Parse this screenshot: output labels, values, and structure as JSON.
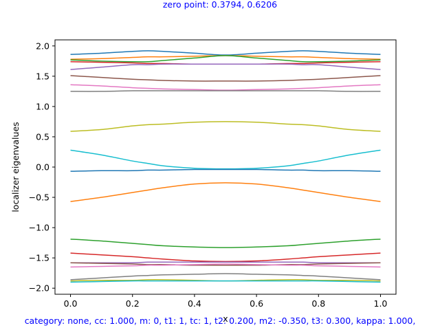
{
  "chart_data": {
    "type": "line",
    "title": "zero point: 0.3794, 0.6206",
    "footer": "category: none, cc: 1.000, m: 0, t1: 1, tc: 1, t2: 0.200, m2: -0.350, t3: 0.300, kappa: 1.000,",
    "xlabel": "x",
    "ylabel": "localizer eigenvalues",
    "xlim": [
      -0.05,
      1.05
    ],
    "ylim": [
      -2.1,
      2.1
    ],
    "xticks": [
      0.0,
      0.2,
      0.4,
      0.6,
      0.8,
      1.0
    ],
    "xtick_labels": [
      "0.0",
      "0.2",
      "0.4",
      "0.6",
      "0.8",
      "1.0"
    ],
    "yticks": [
      -2.0,
      -1.5,
      -1.0,
      -0.5,
      0.0,
      0.5,
      1.0,
      1.5,
      2.0
    ],
    "ytick_labels": [
      "−2.0",
      "−1.5",
      "−1.0",
      "−0.5",
      "0.0",
      "0.5",
      "1.0",
      "1.5",
      "2.0"
    ],
    "grid": false,
    "x": [
      0.0,
      0.1,
      0.2,
      0.25,
      0.3,
      0.4,
      0.5,
      0.6,
      0.7,
      0.75,
      0.8,
      0.9,
      1.0
    ],
    "series": [
      {
        "color": "#1f77b4",
        "values": [
          1.86,
          1.88,
          1.91,
          1.92,
          1.91,
          1.88,
          1.85,
          1.88,
          1.91,
          1.92,
          1.91,
          1.88,
          1.86
        ]
      },
      {
        "color": "#ff7f0e",
        "values": [
          1.78,
          1.79,
          1.81,
          1.82,
          1.82,
          1.83,
          1.84,
          1.83,
          1.82,
          1.82,
          1.81,
          1.79,
          1.78
        ]
      },
      {
        "color": "#2ca02c",
        "values": [
          1.77,
          1.75,
          1.74,
          1.74,
          1.76,
          1.8,
          1.84,
          1.8,
          1.76,
          1.74,
          1.74,
          1.75,
          1.77
        ]
      },
      {
        "color": "#d62728",
        "values": [
          1.74,
          1.73,
          1.72,
          1.71,
          1.71,
          1.7,
          1.7,
          1.7,
          1.71,
          1.71,
          1.72,
          1.73,
          1.74
        ]
      },
      {
        "color": "#9467bd",
        "values": [
          1.61,
          1.65,
          1.69,
          1.69,
          1.7,
          1.7,
          1.7,
          1.7,
          1.7,
          1.69,
          1.69,
          1.65,
          1.61
        ]
      },
      {
        "color": "#8c564b",
        "values": [
          1.51,
          1.48,
          1.45,
          1.44,
          1.43,
          1.42,
          1.42,
          1.42,
          1.43,
          1.44,
          1.45,
          1.48,
          1.51
        ]
      },
      {
        "color": "#e377c2",
        "values": [
          1.36,
          1.34,
          1.31,
          1.3,
          1.29,
          1.28,
          1.27,
          1.28,
          1.29,
          1.3,
          1.31,
          1.34,
          1.36
        ]
      },
      {
        "color": "#7f7f7f",
        "values": [
          1.25,
          1.25,
          1.26,
          1.26,
          1.26,
          1.26,
          1.26,
          1.26,
          1.26,
          1.26,
          1.26,
          1.25,
          1.25
        ]
      },
      {
        "color": "#bcbd22",
        "values": [
          0.59,
          0.62,
          0.68,
          0.7,
          0.71,
          0.74,
          0.75,
          0.74,
          0.71,
          0.7,
          0.68,
          0.62,
          0.59
        ]
      },
      {
        "color": "#17becf",
        "values": [
          0.28,
          0.2,
          0.1,
          0.06,
          0.02,
          -0.02,
          -0.03,
          -0.02,
          0.02,
          0.06,
          0.1,
          0.2,
          0.28
        ]
      },
      {
        "color": "#1f77b4",
        "values": [
          -0.07,
          -0.06,
          -0.06,
          -0.05,
          -0.05,
          -0.04,
          -0.04,
          -0.04,
          -0.05,
          -0.05,
          -0.06,
          -0.06,
          -0.07
        ]
      },
      {
        "color": "#ff7f0e",
        "values": [
          -0.57,
          -0.5,
          -0.42,
          -0.38,
          -0.34,
          -0.28,
          -0.26,
          -0.28,
          -0.34,
          -0.38,
          -0.42,
          -0.5,
          -0.57
        ]
      },
      {
        "color": "#2ca02c",
        "values": [
          -1.19,
          -1.22,
          -1.26,
          -1.28,
          -1.3,
          -1.32,
          -1.33,
          -1.32,
          -1.3,
          -1.28,
          -1.26,
          -1.22,
          -1.19
        ]
      },
      {
        "color": "#d62728",
        "values": [
          -1.42,
          -1.45,
          -1.48,
          -1.5,
          -1.52,
          -1.55,
          -1.56,
          -1.55,
          -1.52,
          -1.5,
          -1.48,
          -1.45,
          -1.42
        ]
      },
      {
        "color": "#9467bd",
        "values": [
          -1.58,
          -1.58,
          -1.58,
          -1.57,
          -1.57,
          -1.57,
          -1.57,
          -1.57,
          -1.57,
          -1.57,
          -1.58,
          -1.58,
          -1.58
        ]
      },
      {
        "color": "#8c564b",
        "values": [
          -1.58,
          -1.59,
          -1.6,
          -1.61,
          -1.61,
          -1.62,
          -1.62,
          -1.62,
          -1.61,
          -1.61,
          -1.6,
          -1.59,
          -1.58
        ]
      },
      {
        "color": "#e377c2",
        "values": [
          -1.65,
          -1.64,
          -1.63,
          -1.62,
          -1.62,
          -1.61,
          -1.6,
          -1.61,
          -1.62,
          -1.62,
          -1.63,
          -1.64,
          -1.65
        ]
      },
      {
        "color": "#7f7f7f",
        "values": [
          -1.86,
          -1.83,
          -1.8,
          -1.79,
          -1.78,
          -1.77,
          -1.76,
          -1.77,
          -1.78,
          -1.79,
          -1.8,
          -1.83,
          -1.86
        ]
      },
      {
        "color": "#bcbd22",
        "values": [
          -1.88,
          -1.87,
          -1.87,
          -1.86,
          -1.86,
          -1.87,
          -1.88,
          -1.87,
          -1.86,
          -1.86,
          -1.87,
          -1.87,
          -1.88
        ]
      },
      {
        "color": "#17becf",
        "values": [
          -1.9,
          -1.89,
          -1.88,
          -1.88,
          -1.88,
          -1.88,
          -1.88,
          -1.88,
          -1.88,
          -1.88,
          -1.88,
          -1.89,
          -1.9
        ]
      }
    ]
  }
}
